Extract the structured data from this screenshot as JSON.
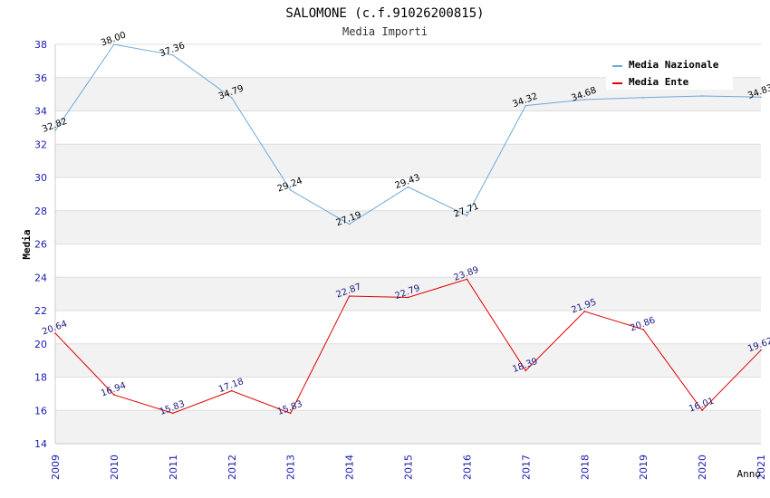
{
  "chart_data": {
    "type": "line",
    "title": "SALOMONE (c.f.91026200815)",
    "subtitle": "Media Importi",
    "ylabel": "Media",
    "xlabel": "Anno",
    "ylim": [
      14,
      38
    ],
    "yticks": [
      14,
      16,
      18,
      20,
      22,
      24,
      26,
      28,
      30,
      32,
      34,
      36,
      38
    ],
    "x": [
      "2009",
      "2010",
      "2011",
      "2012",
      "2013",
      "2014",
      "2015",
      "2016",
      "2017",
      "2018",
      "2019",
      "2020",
      "2021"
    ],
    "series": [
      {
        "name": "Media Nazionale",
        "color": "#6fa8dc",
        "values": [
          32.82,
          38.0,
          37.36,
          34.79,
          29.24,
          27.19,
          29.43,
          27.71,
          34.32,
          34.68,
          34.8,
          34.9,
          34.83
        ],
        "labels": [
          "32.82",
          "38.00",
          "37.36",
          "34.79",
          "29.24",
          "27.19",
          "29.43",
          "27.71",
          "34.32",
          "34.68",
          "",
          "",
          "34.83"
        ]
      },
      {
        "name": "Media Ente",
        "color": "#e00000",
        "values": [
          20.64,
          16.94,
          15.83,
          17.18,
          15.83,
          22.87,
          22.79,
          23.89,
          18.39,
          21.95,
          20.86,
          16.01,
          19.62
        ],
        "labels": [
          "20.64",
          "16.94",
          "15.83",
          "17.18",
          "15.83",
          "22.87",
          "22.79",
          "23.89",
          "18.39",
          "21.95",
          "20.86",
          "16.01",
          "19.62"
        ]
      }
    ],
    "legend_position": "top-right",
    "grid": true
  }
}
